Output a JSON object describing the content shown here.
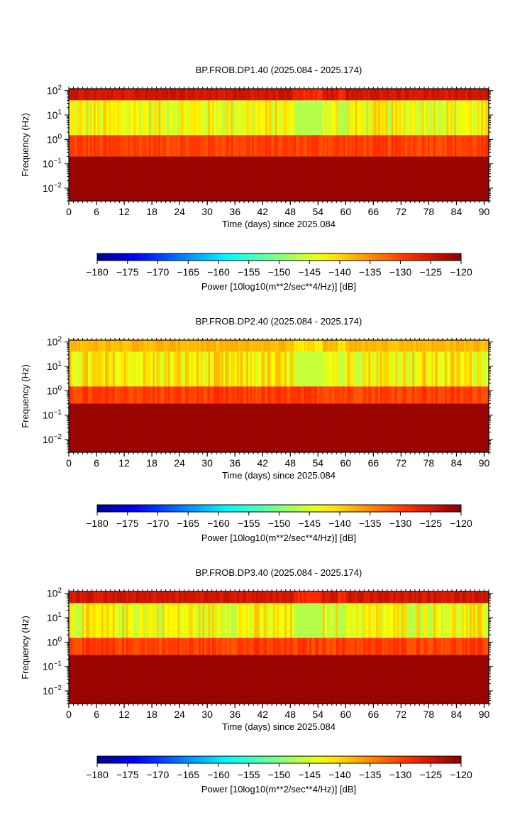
{
  "chart_data": [
    {
      "type": "heatmap",
      "title": "BP.FROB.DP1.40 (2025.084 - 2025.174)",
      "xlabel": "Time (days) since 2025.084",
      "ylabel": "Frequency (Hz)",
      "xlim": [
        0,
        91
      ],
      "ylim": [
        0.003,
        120
      ],
      "yscale": "log",
      "x_ticks": [
        "0",
        "6",
        "12",
        "18",
        "24",
        "30",
        "36",
        "42",
        "48",
        "54",
        "60",
        "66",
        "72",
        "78",
        "84",
        "90"
      ],
      "y_ticks": [
        {
          "base": "10",
          "exp": "2",
          "value": 100
        },
        {
          "base": "10",
          "exp": "1",
          "value": 10
        },
        {
          "base": "10",
          "exp": "0",
          "value": 1
        },
        {
          "base": "10",
          "exp": "−1",
          "value": 0.1
        },
        {
          "base": "10",
          "exp": "−2",
          "value": 0.01
        }
      ],
      "bands": [
        {
          "f_low": 40,
          "f_high": 120,
          "power_db": -125,
          "label": "upper red band"
        },
        {
          "f_low": 1.5,
          "f_high": 40,
          "power_db": -143,
          "label": "yellow-orange noise band"
        },
        {
          "f_low": 0.2,
          "f_high": 1.5,
          "power_db": -130,
          "label": "transition band"
        },
        {
          "f_low": 0.003,
          "f_high": 0.2,
          "power_db": -121,
          "label": "low-frequency dark red"
        }
      ],
      "quiet_intervals_days": [
        [
          49,
          55
        ],
        [
          58.5,
          60
        ]
      ],
      "colorbar": {
        "label": "Power [10log10(m**2/sec**4/Hz)] [dB]",
        "range": [
          -180,
          -120
        ],
        "ticks": [
          "−180",
          "−175",
          "−170",
          "−165",
          "−160",
          "−155",
          "−150",
          "−145",
          "−140",
          "−135",
          "−130",
          "−125",
          "−120"
        ]
      }
    },
    {
      "type": "heatmap",
      "title": "BP.FROB.DP2.40 (2025.084 - 2025.174)",
      "xlabel": "Time (days) since 2025.084",
      "ylabel": "Frequency (Hz)",
      "xlim": [
        0,
        91
      ],
      "ylim": [
        0.003,
        120
      ],
      "yscale": "log",
      "x_ticks": [
        "0",
        "6",
        "12",
        "18",
        "24",
        "30",
        "36",
        "42",
        "48",
        "54",
        "60",
        "66",
        "72",
        "78",
        "84",
        "90"
      ],
      "y_ticks": [
        {
          "base": "10",
          "exp": "2",
          "value": 100
        },
        {
          "base": "10",
          "exp": "1",
          "value": 10
        },
        {
          "base": "10",
          "exp": "0",
          "value": 1
        },
        {
          "base": "10",
          "exp": "−1",
          "value": 0.1
        },
        {
          "base": "10",
          "exp": "−2",
          "value": 0.01
        }
      ],
      "bands": [
        {
          "f_low": 40,
          "f_high": 120,
          "power_db": -138,
          "label": "upper orange band"
        },
        {
          "f_low": 1.5,
          "f_high": 40,
          "power_db": -142,
          "label": "yellow-orange noise band"
        },
        {
          "f_low": 0.3,
          "f_high": 1.5,
          "power_db": -130,
          "label": "transition band"
        },
        {
          "f_low": 0.003,
          "f_high": 0.3,
          "power_db": -121,
          "label": "low-frequency dark red"
        }
      ],
      "quiet_intervals_days": [
        [
          49,
          55
        ],
        [
          58.5,
          60
        ]
      ],
      "colorbar": {
        "label": "Power [10log10(m**2/sec**4/Hz)] [dB]",
        "range": [
          -180,
          -120
        ],
        "ticks": [
          "−180",
          "−175",
          "−170",
          "−165",
          "−160",
          "−155",
          "−150",
          "−145",
          "−140",
          "−135",
          "−130",
          "−125",
          "−120"
        ]
      }
    },
    {
      "type": "heatmap",
      "title": "BP.FROB.DP3.40 (2025.084 - 2025.174)",
      "xlabel": "Time (days) since 2025.084",
      "ylabel": "Frequency (Hz)",
      "xlim": [
        0,
        91
      ],
      "ylim": [
        0.003,
        120
      ],
      "yscale": "log",
      "x_ticks": [
        "0",
        "6",
        "12",
        "18",
        "24",
        "30",
        "36",
        "42",
        "48",
        "54",
        "60",
        "66",
        "72",
        "78",
        "84",
        "90"
      ],
      "y_ticks": [
        {
          "base": "10",
          "exp": "2",
          "value": 100
        },
        {
          "base": "10",
          "exp": "1",
          "value": 10
        },
        {
          "base": "10",
          "exp": "0",
          "value": 1
        },
        {
          "base": "10",
          "exp": "−1",
          "value": 0.1
        },
        {
          "base": "10",
          "exp": "−2",
          "value": 0.01
        }
      ],
      "bands": [
        {
          "f_low": 40,
          "f_high": 120,
          "power_db": -125,
          "label": "upper red band"
        },
        {
          "f_low": 1.5,
          "f_high": 40,
          "power_db": -143,
          "label": "yellow-orange noise band"
        },
        {
          "f_low": 0.3,
          "f_high": 1.5,
          "power_db": -130,
          "label": "transition band"
        },
        {
          "f_low": 0.003,
          "f_high": 0.3,
          "power_db": -121,
          "label": "low-frequency dark red"
        }
      ],
      "quiet_intervals_days": [
        [
          49,
          55
        ],
        [
          58.5,
          60
        ]
      ],
      "colorbar": {
        "label": "Power [10log10(m**2/sec**4/Hz)] [dB]",
        "range": [
          -180,
          -120
        ],
        "ticks": [
          "−180",
          "−175",
          "−170",
          "−165",
          "−160",
          "−155",
          "−150",
          "−145",
          "−140",
          "−135",
          "−130",
          "−125",
          "−120"
        ]
      }
    }
  ]
}
